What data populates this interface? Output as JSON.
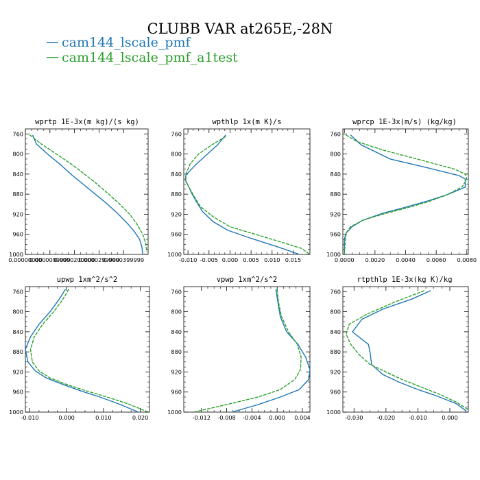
{
  "figure": {
    "title": "CLUBB VAR at265E,-28N",
    "legend": [
      {
        "label": "cam144_lscale_pmf",
        "color": "#1f77b4"
      },
      {
        "label": "cam144_lscale_pmf_a1test",
        "color": "#2ca02c"
      }
    ]
  },
  "chart_data": [
    {
      "type": "line",
      "title": "wprtp  1E-3x(m kg)/(s kg)",
      "xlim": [
        0.0,
        5e-05
      ],
      "ylim": [
        1000,
        750
      ],
      "xticks": [
        0.0,
        1e-05,
        2e-05,
        3e-05,
        4e-05
      ],
      "xtick_labels": [
        "0.00000000",
        "0.0000099999",
        "0.0000200000",
        "0.0000299999",
        "0.0000399999"
      ],
      "yticks": [
        760,
        800,
        840,
        880,
        920,
        960,
        1000
      ],
      "ytick_labels": [
        "760",
        "800",
        "840",
        "880",
        "920",
        "960",
        "1000"
      ],
      "series": [
        {
          "name": "cam144_lscale_pmf",
          "color": "#1f77b4",
          "x": [
            3e-06,
            4.5e-06,
            9.5e-06,
            1.4e-05,
            1.9e-05,
            2.4e-05,
            2.85e-05,
            3.3e-05,
            3.75e-05,
            4.15e-05,
            4.45e-05,
            4.65e-05,
            4.75e-05,
            4.78e-05
          ],
          "y": [
            762,
            780,
            802,
            820,
            842,
            862,
            880,
            898,
            918,
            938,
            955,
            970,
            985,
            1000
          ]
        },
        {
          "name": "cam144_lscale_pmf_a1test",
          "color": "#2ca02c",
          "x": [
            1.8e-06,
            6.5e-06,
            1.2e-05,
            1.75e-05,
            2.3e-05,
            2.85e-05,
            3.35e-05,
            3.8e-05,
            4.25e-05,
            4.55e-05,
            4.78e-05,
            4.9e-05,
            4.95e-05
          ],
          "y": [
            762,
            780,
            798,
            816,
            836,
            857,
            878,
            898,
            920,
            940,
            960,
            978,
            995
          ]
        }
      ]
    },
    {
      "type": "line",
      "title": "wpthlp  1x(m K)/s",
      "xlim": [
        -0.011,
        0.019
      ],
      "ylim": [
        1000,
        750
      ],
      "xticks": [
        -0.01,
        -0.005,
        0.0,
        0.005,
        0.01,
        0.015
      ],
      "xtick_labels": [
        "-0.010",
        "-0.005",
        "0.000",
        "0.005",
        "0.010",
        "0.015"
      ],
      "yticks": [
        760,
        800,
        840,
        880,
        920,
        960,
        1000
      ],
      "ytick_labels": [
        "760",
        "800",
        "840",
        "880",
        "920",
        "960",
        "1000"
      ],
      "series": [
        {
          "name": "cam144_lscale_pmf",
          "color": "#1f77b4",
          "x": [
            -0.001,
            -0.003,
            -0.008,
            -0.0105,
            -0.0106,
            -0.01,
            -0.009,
            -0.008,
            -0.0065,
            -0.004,
            -0.0005,
            0.005,
            0.011,
            0.0165
          ],
          "y": [
            762,
            782,
            820,
            842,
            852,
            862,
            880,
            895,
            915,
            935,
            952,
            968,
            984,
            1000
          ]
        },
        {
          "name": "cam144_lscale_pmf_a1test",
          "color": "#2ca02c",
          "x": [
            -0.001,
            -0.004,
            -0.0075,
            -0.0095,
            -0.0105,
            -0.0105,
            -0.0095,
            -0.0085,
            -0.007,
            -0.004,
            0.0,
            0.006,
            0.012,
            0.017,
            0.019
          ],
          "y": [
            765,
            780,
            800,
            820,
            840,
            855,
            870,
            885,
            905,
            925,
            945,
            960,
            975,
            988,
            1000
          ]
        }
      ]
    },
    {
      "type": "line",
      "title": "wprcp  1E-3x(m/s) (kg/kg)",
      "xlim": [
        -0.0001,
        0.0081
      ],
      "ylim": [
        1000,
        750
      ],
      "xticks": [
        0.0,
        0.002,
        0.004,
        0.006,
        0.008
      ],
      "xtick_labels": [
        "0.0000",
        "0.0020",
        "0.0040",
        "0.0060",
        "0.0080"
      ],
      "yticks": [
        760,
        800,
        840,
        880,
        920,
        960,
        1000
      ],
      "ytick_labels": [
        "760",
        "800",
        "840",
        "880",
        "920",
        "960",
        "1000"
      ],
      "series": [
        {
          "name": "cam144_lscale_pmf",
          "color": "#1f77b4",
          "x": [
            0.0004,
            0.0011,
            0.003,
            0.0055,
            0.0075,
            0.0079,
            0.0079,
            0.0068,
            0.0055,
            0.004,
            0.0025,
            0.0012,
            0.0005,
            0.0001,
            0.0,
            0.0
          ],
          "y": [
            762,
            782,
            810,
            828,
            843,
            850,
            866,
            880,
            893,
            906,
            918,
            932,
            945,
            958,
            970,
            1000
          ]
        },
        {
          "name": "cam144_lscale_pmf_a1test",
          "color": "#2ca02c",
          "x": [
            0.0001,
            0.0008,
            0.0025,
            0.005,
            0.0072,
            0.0079,
            0.008,
            0.0077,
            0.0068,
            0.0055,
            0.004,
            0.0025,
            0.0012,
            0.0004,
            0.0001,
            0.0
          ],
          "y": [
            762,
            775,
            792,
            812,
            830,
            840,
            850,
            865,
            880,
            895,
            908,
            920,
            932,
            945,
            958,
            1000
          ]
        }
      ]
    },
    {
      "type": "line",
      "title": "upwp  1xm^2/s^2",
      "xlim": [
        -0.0112,
        0.0225
      ],
      "ylim": [
        1000,
        750
      ],
      "xticks": [
        -0.01,
        0.0,
        0.01,
        0.02
      ],
      "xtick_labels": [
        "-0.010",
        "0.000",
        "0.010",
        "0.020"
      ],
      "yticks": [
        760,
        800,
        840,
        880,
        920,
        960,
        1000
      ],
      "ytick_labels": [
        "760",
        "800",
        "840",
        "880",
        "920",
        "960",
        "1000"
      ],
      "series": [
        {
          "name": "cam144_lscale_pmf",
          "color": "#1f77b4",
          "x": [
            -0.0003,
            -0.002,
            -0.0045,
            -0.0075,
            -0.0098,
            -0.0112,
            -0.0105,
            -0.0085,
            -0.0055,
            -0.001,
            0.004,
            0.009,
            0.014,
            0.0195
          ],
          "y": [
            755,
            775,
            800,
            825,
            850,
            875,
            900,
            918,
            932,
            945,
            958,
            970,
            983,
            1000
          ]
        },
        {
          "name": "cam144_lscale_pmf_a1test",
          "color": "#2ca02c",
          "x": [
            0.0006,
            -0.001,
            -0.0035,
            -0.0065,
            -0.0088,
            -0.0098,
            -0.0093,
            -0.0075,
            -0.0045,
            0.0,
            0.0055,
            0.011,
            0.0165,
            0.0222
          ],
          "y": [
            755,
            775,
            800,
            825,
            850,
            875,
            900,
            918,
            932,
            945,
            958,
            970,
            983,
            1000
          ]
        }
      ]
    },
    {
      "type": "line",
      "title": "vpwp  1xm^2/s^2",
      "xlim": [
        -0.0148,
        0.0052
      ],
      "ylim": [
        1000,
        750
      ],
      "xticks": [
        -0.012,
        -0.008,
        -0.004,
        0.0,
        0.004
      ],
      "xtick_labels": [
        "-0.012",
        "-0.008",
        "-0.004",
        "0.000",
        "0.004"
      ],
      "yticks": [
        760,
        800,
        840,
        880,
        920,
        960,
        1000
      ],
      "ytick_labels": [
        "760",
        "800",
        "840",
        "880",
        "920",
        "960",
        "1000"
      ],
      "series": [
        {
          "name": "cam144_lscale_pmf",
          "color": "#1f77b4",
          "x": [
            -0.0002,
            0.0001,
            0.0005,
            0.0015,
            0.0033,
            0.0045,
            0.0052,
            0.005,
            0.0035,
            0.0005,
            -0.003,
            -0.0072
          ],
          "y": [
            755,
            780,
            810,
            840,
            865,
            890,
            915,
            935,
            955,
            970,
            985,
            1000
          ]
        },
        {
          "name": "cam144_lscale_pmf_a1test",
          "color": "#2ca02c",
          "x": [
            0.0,
            0.0002,
            0.0007,
            0.0018,
            0.0032,
            0.0038,
            0.0037,
            0.0028,
            0.0005,
            -0.003,
            -0.008,
            -0.0132
          ],
          "y": [
            755,
            780,
            810,
            840,
            865,
            890,
            915,
            935,
            955,
            970,
            985,
            1000
          ]
        }
      ]
    },
    {
      "type": "line",
      "title": "rtpthlp  1E-3x(kg K)/kg",
      "xlim": [
        -0.0335,
        0.0058
      ],
      "ylim": [
        1000,
        750
      ],
      "xticks": [
        -0.03,
        -0.02,
        -0.01,
        0.0
      ],
      "xtick_labels": [
        "-0.030",
        "-0.020",
        "-0.010",
        "0.000"
      ],
      "yticks": [
        760,
        800,
        840,
        880,
        920,
        960,
        1000
      ],
      "ytick_labels": [
        "760",
        "800",
        "840",
        "880",
        "920",
        "960",
        "1000"
      ],
      "series": [
        {
          "name": "cam144_lscale_pmf",
          "color": "#1f77b4",
          "x": [
            -0.006,
            -0.012,
            -0.021,
            -0.0275,
            -0.0305,
            -0.0275,
            -0.0255,
            -0.025,
            -0.0245,
            -0.021,
            -0.016,
            -0.01,
            -0.004,
            0.002,
            0.0052
          ],
          "y": [
            758,
            775,
            795,
            815,
            840,
            855,
            865,
            880,
            905,
            925,
            940,
            955,
            968,
            983,
            998
          ]
        },
        {
          "name": "cam144_lscale_pmf_a1test",
          "color": "#2ca02c",
          "x": [
            -0.008,
            -0.017,
            -0.026,
            -0.0315,
            -0.0325,
            -0.031,
            -0.0285,
            -0.025,
            -0.02,
            -0.015,
            -0.009,
            -0.003,
            0.002,
            0.0058
          ],
          "y": [
            758,
            780,
            805,
            825,
            845,
            865,
            885,
            905,
            920,
            935,
            950,
            965,
            980,
            995
          ]
        }
      ]
    }
  ]
}
